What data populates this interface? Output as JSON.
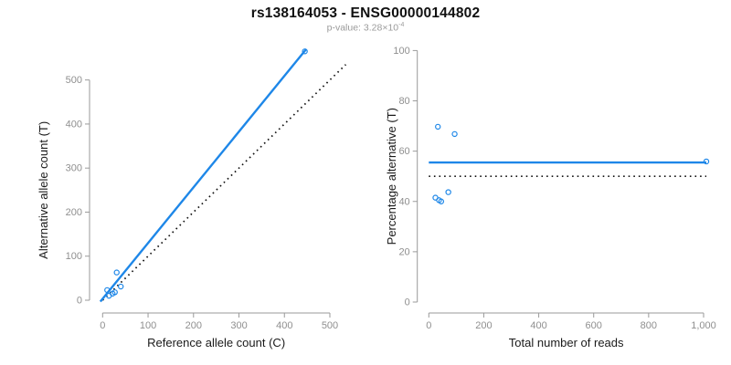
{
  "header": {
    "title": "rs138164053 - ENSG00000144802",
    "subtitle_label": "p-value:",
    "subtitle_mantissa": "3.28×10",
    "subtitle_exponent": "-4"
  },
  "colors": {
    "accent_blue": "#1E87E8",
    "axis_gray": "#9A9A9A",
    "tick_label_gray": "#8F8F8F",
    "axis_title_color": "#1A1A1A",
    "dotted_line_black": "#111111"
  },
  "chart_data": [
    {
      "type": "scatter",
      "name": "allele-count-scatter",
      "title": "rs138164053 - ENSG00000144802",
      "subtitle": "p-value: 3.28×10^-4",
      "xlabel": "Reference allele count (C)",
      "ylabel": "Alternative allele count (T)",
      "xlim": [
        0,
        500
      ],
      "ylim": [
        0,
        500
      ],
      "grid": false,
      "xticks": [
        0,
        100,
        200,
        300,
        400,
        500
      ],
      "xtick_labels": [
        "0",
        "100",
        "200",
        "300",
        "400",
        "500"
      ],
      "yticks": [
        0,
        100,
        200,
        300,
        400,
        500
      ],
      "ytick_labels": [
        "0",
        "100",
        "200",
        "300",
        "400",
        "500"
      ],
      "points": [
        [
          10,
          23
        ],
        [
          31,
          63
        ],
        [
          40,
          31
        ],
        [
          14,
          10
        ],
        [
          22,
          15
        ],
        [
          27,
          18
        ],
        [
          445,
          565
        ]
      ],
      "lines": [
        {
          "name": "identity-line",
          "style": "dotted",
          "color": "#111111",
          "points": [
            [
              0,
              0
            ],
            [
              535,
              535
            ]
          ]
        },
        {
          "name": "regression-line",
          "style": "solid",
          "color": "#1E87E8",
          "points": [
            [
              -5,
              -3
            ],
            [
              448,
              570
            ]
          ]
        }
      ]
    },
    {
      "type": "scatter",
      "name": "percentage-alternative-scatter",
      "xlabel": "Total number of reads",
      "ylabel": "Percentage alternative (T)",
      "xlim": [
        0,
        1000
      ],
      "ylim": [
        0,
        100
      ],
      "grid": false,
      "xticks": [
        0,
        200,
        400,
        600,
        800,
        1000
      ],
      "xtick_labels": [
        "0",
        "200",
        "400",
        "600",
        "800",
        "1,000"
      ],
      "yticks": [
        0,
        20,
        40,
        60,
        80,
        100
      ],
      "ytick_labels": [
        "0",
        "20",
        "40",
        "60",
        "80",
        "100"
      ],
      "points": [
        [
          33,
          69.7
        ],
        [
          94,
          66.8
        ],
        [
          71,
          43.7
        ],
        [
          24,
          41.5
        ],
        [
          37,
          40.5
        ],
        [
          45,
          40.0
        ],
        [
          1010,
          55.9
        ]
      ],
      "lines": [
        {
          "name": "expected-50-line",
          "style": "dotted",
          "color": "#111111",
          "points": [
            [
              0,
              50
            ],
            [
              1010,
              50
            ]
          ]
        },
        {
          "name": "mean-percentage-line",
          "style": "solid",
          "color": "#1E87E8",
          "points": [
            [
              0,
              55.5
            ],
            [
              1010,
              55.5
            ]
          ]
        }
      ]
    }
  ]
}
